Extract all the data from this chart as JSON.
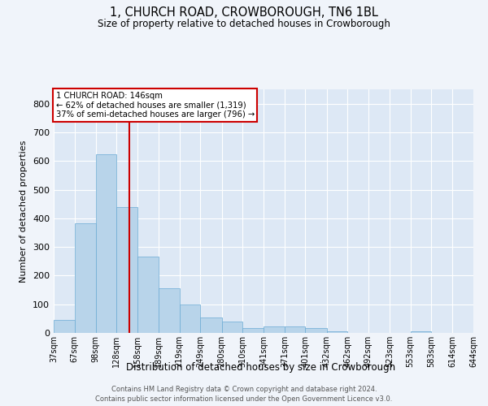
{
  "title": "1, CHURCH ROAD, CROWBOROUGH, TN6 1BL",
  "subtitle": "Size of property relative to detached houses in Crowborough",
  "xlabel": "Distribution of detached houses by size in Crowborough",
  "ylabel": "Number of detached properties",
  "bar_edges": [
    37,
    67,
    98,
    128,
    158,
    189,
    219,
    249,
    280,
    310,
    341,
    371,
    401,
    432,
    462,
    492,
    523,
    553,
    583,
    614,
    644
  ],
  "bar_heights": [
    45,
    383,
    622,
    440,
    265,
    155,
    100,
    55,
    40,
    18,
    22,
    22,
    18,
    6,
    0,
    0,
    0,
    5,
    0,
    0
  ],
  "bar_color": "#b8d4ea",
  "bar_edge_color": "#6aaad4",
  "background_color": "#dde8f5",
  "grid_color": "#ffffff",
  "red_line_x": 146,
  "annotation_text": "1 CHURCH ROAD: 146sqm\n← 62% of detached houses are smaller (1,319)\n37% of semi-detached houses are larger (796) →",
  "annotation_box_color": "#ffffff",
  "annotation_box_edge": "#cc0000",
  "ylim": [
    0,
    850
  ],
  "yticks": [
    0,
    100,
    200,
    300,
    400,
    500,
    600,
    700,
    800
  ],
  "footer_line1": "Contains HM Land Registry data © Crown copyright and database right 2024.",
  "footer_line2": "Contains public sector information licensed under the Open Government Licence v3.0."
}
